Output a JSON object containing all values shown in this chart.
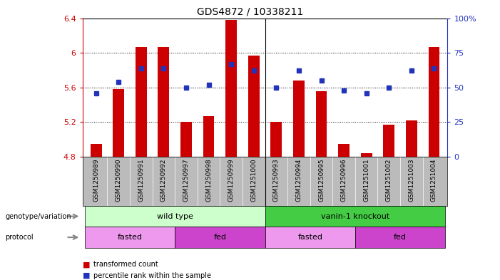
{
  "title": "GDS4872 / 10338211",
  "samples": [
    "GSM1250989",
    "GSM1250990",
    "GSM1250991",
    "GSM1250992",
    "GSM1250997",
    "GSM1250998",
    "GSM1250999",
    "GSM1251000",
    "GSM1250993",
    "GSM1250994",
    "GSM1250995",
    "GSM1250996",
    "GSM1251001",
    "GSM1251002",
    "GSM1251003",
    "GSM1251004"
  ],
  "bar_values": [
    4.95,
    5.58,
    6.07,
    6.07,
    5.2,
    5.27,
    6.38,
    5.97,
    5.2,
    5.68,
    5.56,
    4.95,
    4.84,
    5.17,
    5.22,
    6.07
  ],
  "blue_values": [
    46,
    54,
    64,
    64,
    50,
    52,
    67,
    62,
    50,
    62,
    55,
    48,
    46,
    50,
    62,
    64
  ],
  "bar_bottom": 4.8,
  "ylim_left": [
    4.8,
    6.4
  ],
  "ylim_right": [
    0,
    100
  ],
  "yticks_left": [
    4.8,
    5.2,
    5.6,
    6.0,
    6.4
  ],
  "ytick_labels_left": [
    "4.8",
    "5.2",
    "5.6",
    "6",
    "6.4"
  ],
  "yticks_right": [
    0,
    25,
    50,
    75,
    100
  ],
  "ytick_labels_right": [
    "0",
    "25",
    "50",
    "75",
    "100%"
  ],
  "bar_color": "#cc0000",
  "blue_color": "#2233bb",
  "genotype_groups": [
    {
      "label": "wild type",
      "start": 0,
      "end": 7,
      "color": "#ccffcc"
    },
    {
      "label": "vanin-1 knockout",
      "start": 8,
      "end": 15,
      "color": "#44cc44"
    }
  ],
  "protocol_groups": [
    {
      "label": "fasted",
      "start": 0,
      "end": 3,
      "color": "#ee99ee"
    },
    {
      "label": "fed",
      "start": 4,
      "end": 7,
      "color": "#cc44cc"
    },
    {
      "label": "fasted",
      "start": 8,
      "end": 11,
      "color": "#ee99ee"
    },
    {
      "label": "fed",
      "start": 12,
      "end": 15,
      "color": "#cc44cc"
    }
  ],
  "legend_red_label": "transformed count",
  "legend_blue_label": "percentile rank within the sample",
  "left_axis_color": "#cc0000",
  "right_axis_color": "#2233bb",
  "xlabel_bg_color": "#bbbbbb",
  "separator_col": 7.5
}
